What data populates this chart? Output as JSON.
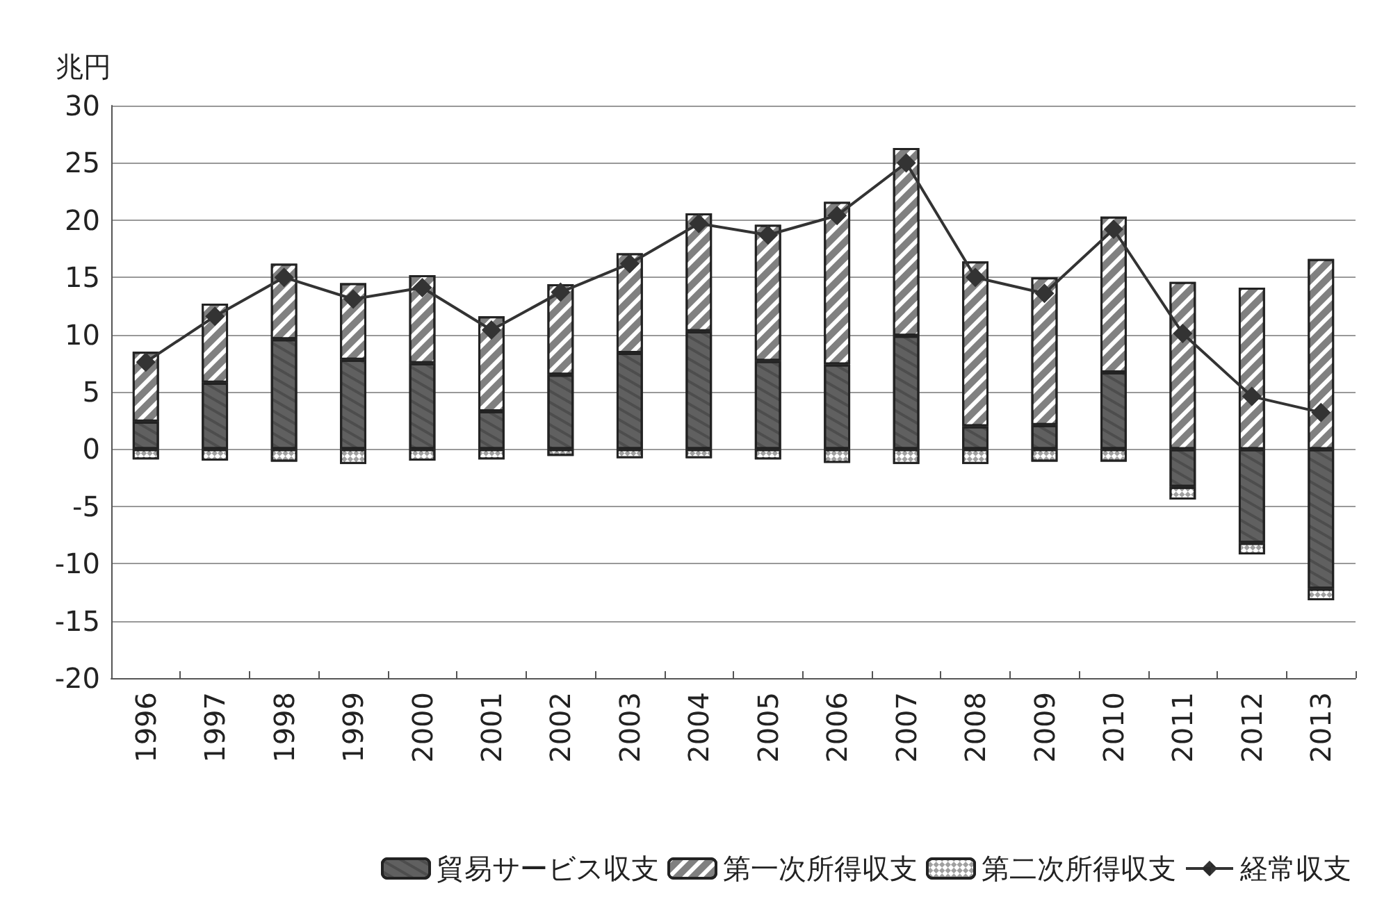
{
  "chart_data": {
    "type": "bar",
    "stacked": true,
    "ylabel": "兆円",
    "categories": [
      "1996",
      "1997",
      "1998",
      "1999",
      "2000",
      "2001",
      "2002",
      "2003",
      "2004",
      "2005",
      "2006",
      "2007",
      "2008",
      "2009",
      "2010",
      "2011",
      "2012",
      "2013"
    ],
    "series": [
      {
        "name": "貿易サービス収支",
        "color": "#606060",
        "values": [
          2.4,
          5.8,
          9.6,
          7.8,
          7.5,
          3.3,
          6.5,
          8.4,
          10.3,
          7.7,
          7.4,
          9.9,
          2.0,
          2.1,
          6.7,
          -3.3,
          -8.2,
          -12.2
        ]
      },
      {
        "name": "第一次所得収支",
        "color": "#808080",
        "values": [
          6.1,
          6.9,
          6.6,
          6.7,
          7.7,
          8.3,
          7.9,
          8.7,
          10.3,
          11.9,
          14.2,
          16.4,
          14.4,
          12.9,
          13.6,
          14.6,
          14.1,
          16.6
        ]
      },
      {
        "name": "第二次所得収支",
        "color": "#a0a0a0",
        "values": [
          -0.9,
          -1.0,
          -1.1,
          -1.3,
          -1.0,
          -0.9,
          -0.6,
          -0.8,
          -0.8,
          -0.9,
          -1.2,
          -1.3,
          -1.3,
          -1.1,
          -1.1,
          -1.1,
          -1.0,
          -1.0
        ]
      },
      {
        "name": "経常収支",
        "type": "line",
        "color": "#333333",
        "marker": "diamond",
        "values": [
          7.6,
          11.6,
          15.0,
          13.1,
          14.1,
          10.4,
          13.7,
          16.2,
          19.7,
          18.7,
          20.4,
          25.0,
          15.0,
          13.6,
          19.2,
          10.1,
          4.6,
          3.2
        ]
      }
    ],
    "ylim": [
      -20,
      30
    ],
    "yticks": [
      -20,
      -15,
      -10,
      -5,
      0,
      5,
      10,
      15,
      20,
      25,
      30
    ],
    "grid": "y",
    "legend": "bottom"
  }
}
